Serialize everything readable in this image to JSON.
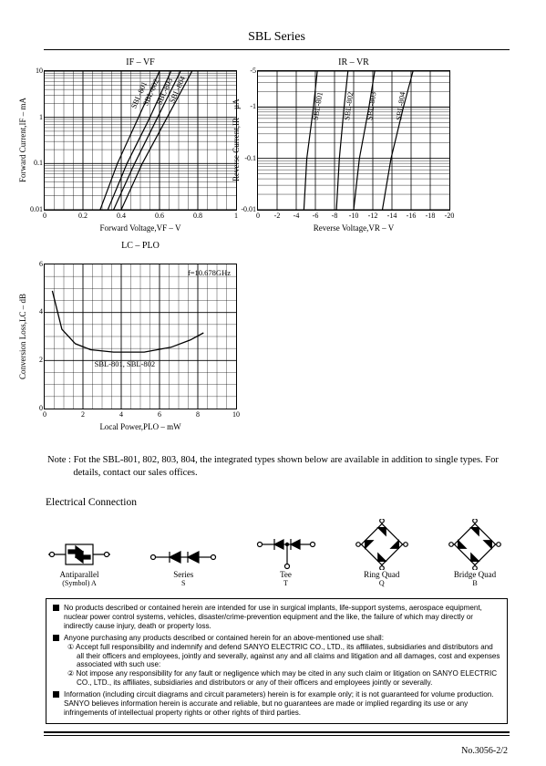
{
  "header": {
    "series_title": "SBL Series"
  },
  "chart_if_vf": {
    "type": "semilogy-line",
    "title": "IF  –  VF",
    "xlabel": "Forward Voltage,VF – V",
    "ylabel": "Forward Current,IF – mA",
    "xlim": [
      0,
      1.0
    ],
    "xtick_step": 0.2,
    "xticks": [
      0,
      0.2,
      0.4,
      0.6,
      0.8,
      1.0
    ],
    "ylim": [
      0.01,
      10
    ],
    "yticks": [
      0.01,
      0.1,
      1,
      10
    ],
    "grid_color": "#000000",
    "bg": "#ffffff",
    "line_color": "#000000",
    "line_width": 1.2,
    "series": [
      {
        "name": "SBL-801",
        "pts": [
          [
            0.29,
            0.01
          ],
          [
            0.38,
            0.1
          ],
          [
            0.49,
            1
          ],
          [
            0.6,
            10
          ]
        ]
      },
      {
        "name": "SBL-802",
        "pts": [
          [
            0.33,
            0.01
          ],
          [
            0.43,
            0.1
          ],
          [
            0.55,
            1
          ],
          [
            0.66,
            10
          ]
        ]
      },
      {
        "name": "SBL-803",
        "pts": [
          [
            0.36,
            0.01
          ],
          [
            0.47,
            0.1
          ],
          [
            0.59,
            1
          ],
          [
            0.71,
            10
          ]
        ]
      },
      {
        "name": "SBL-804",
        "pts": [
          [
            0.4,
            0.01
          ],
          [
            0.51,
            0.1
          ],
          [
            0.64,
            1
          ],
          [
            0.77,
            10
          ]
        ]
      }
    ]
  },
  "chart_ir_vr": {
    "type": "semilogy-line",
    "title": "IR  –  VR",
    "xlabel": "Reverse Voltage,VR – V",
    "ylabel": "Reverse Current,IR – µA",
    "xlim": [
      0,
      -20
    ],
    "xticks": [
      0,
      -2,
      -4,
      -6,
      -8,
      -10,
      -12,
      -14,
      -16,
      -18,
      -20
    ],
    "ylim": [
      -0.01,
      -5
    ],
    "yticks": [
      -0.01,
      -0.1,
      -1,
      -5
    ],
    "grid_color": "#000000",
    "bg": "#ffffff",
    "line_color": "#000000",
    "line_width": 1.2,
    "series": [
      {
        "name": "SBL-801",
        "pts": [
          [
            -4.8,
            -0.01
          ],
          [
            -5.1,
            -0.1
          ],
          [
            -5.8,
            -1
          ],
          [
            -6.2,
            -5
          ]
        ]
      },
      {
        "name": "SBL-802",
        "pts": [
          [
            -8.2,
            -0.01
          ],
          [
            -8.5,
            -0.1
          ],
          [
            -9.0,
            -1
          ],
          [
            -9.4,
            -5
          ]
        ]
      },
      {
        "name": "SBL-803",
        "pts": [
          [
            -10.0,
            -0.01
          ],
          [
            -10.6,
            -0.1
          ],
          [
            -11.6,
            -1
          ],
          [
            -12.2,
            -5
          ]
        ]
      },
      {
        "name": "SBL-804",
        "pts": [
          [
            -13.0,
            -0.01
          ],
          [
            -13.9,
            -0.1
          ],
          [
            -15.2,
            -1
          ],
          [
            -16.2,
            -5
          ]
        ]
      }
    ]
  },
  "chart_lc_plo": {
    "type": "line",
    "title": "LC  –  PLO",
    "xlabel": "Local Power,PLO – mW",
    "ylabel": "Conversion Loss,LC – dB",
    "annotation": "f=10.678GHz",
    "series_label": "SBL-801, SBL-802",
    "xlim": [
      0,
      10
    ],
    "xticks": [
      0,
      2,
      4,
      6,
      8,
      10
    ],
    "ylim": [
      0,
      6
    ],
    "yticks": [
      0,
      2,
      4,
      6
    ],
    "grid_color": "#000000",
    "bg": "#ffffff",
    "line_color": "#000000",
    "line_width": 1.3,
    "pts": [
      [
        0.4,
        4.9
      ],
      [
        0.9,
        3.3
      ],
      [
        1.6,
        2.7
      ],
      [
        2.4,
        2.45
      ],
      [
        3.6,
        2.35
      ],
      [
        5.2,
        2.35
      ],
      [
        6.6,
        2.55
      ],
      [
        7.6,
        2.85
      ],
      [
        8.3,
        3.15
      ]
    ]
  },
  "note": "Note : Fot the SBL-801, 802, 803, 804, the integrated types shown below are available in addition to single types.  For details, contact our sales offices.",
  "ec_title": "Electrical Connection",
  "ec_items": [
    {
      "name": "Antiparallel",
      "sub": "(Symbol)    A"
    },
    {
      "name": "Series",
      "sub": "S"
    },
    {
      "name": "Tee",
      "sub": "T"
    },
    {
      "name": "Ring Quad",
      "sub": "Q"
    },
    {
      "name": "Bridge Quad",
      "sub": "B"
    }
  ],
  "disclaimer": {
    "b1": "No products described or contained herein are intended for use in surgical implants, life-support systems, aerospace equipment, nuclear power control systems, vehicles, disaster/crime-prevention equipment and the like, the failure of which may directly or indirectly cause injury, death or property loss.",
    "b2": "Anyone purchasing any products described or contained herein for an above-mentioned use shall:",
    "b2a": "① Accept full responsibility and indemnify and defend SANYO ELECTRIC CO., LTD., its affiliates, subsidiaries and distributors and all their officers and employees, jointly and severally, against any and all claims and litigation and all damages, cost and expenses associated with such use:",
    "b2b": "② Not impose any responsibility for any fault or negligence which may be cited in any such claim or litigation on SANYO ELECTRIC CO., LTD., its affiliates, subsidiaries and distributors or any of their officers and employees jointly or severally.",
    "b3": "Information (including circuit diagrams and circuit parameters) herein is for example only; it is not guaranteed for volume production. SANYO believes information herein is accurate and reliable, but no guarantees are made or implied regarding its use or any infringements of intellectual property rights or other rights of third parties."
  },
  "page_number": "No.3056-2/2",
  "style": {
    "text_color": "#000000",
    "border_color": "#000000",
    "font_body": "Times New Roman, serif",
    "font_sans": "Helvetica, Arial, sans-serif"
  }
}
